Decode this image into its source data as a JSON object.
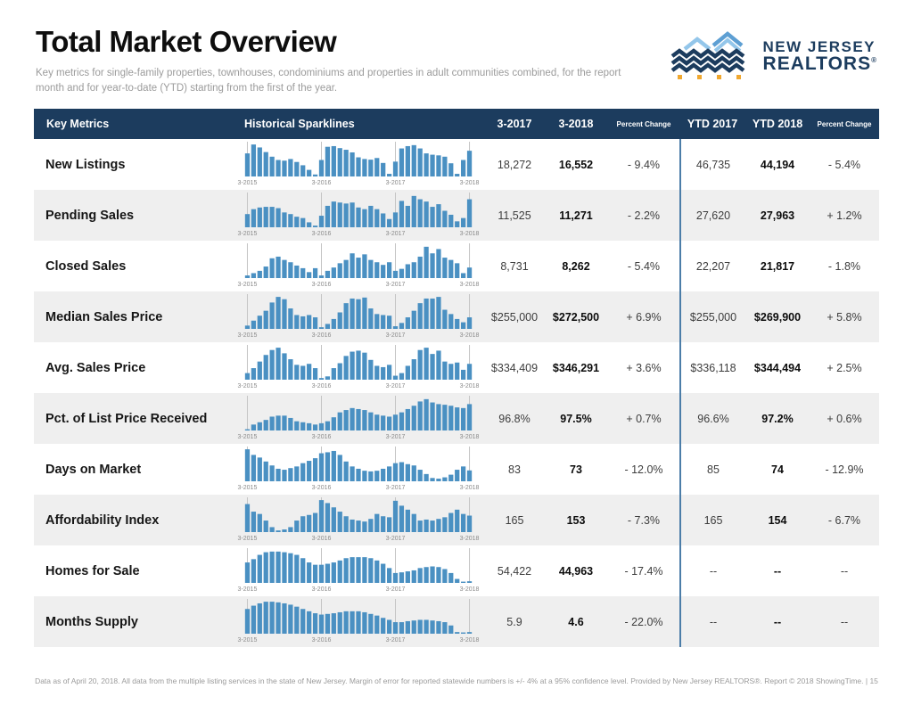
{
  "page": {
    "title": "Total Market Overview",
    "subtitle": "Key metrics for single-family properties, townhouses, condominiums and properties in adult communities combined, for the report month and for year-to-date (YTD) starting from the first of the year.",
    "footer": "Data as of April 20, 2018. All data from the multiple listing services in the state of New Jersey. Margin of error for reported statewide numbers is +/- 4% at a 95% confidence level. Provided by New Jersey REALTORS®. Report © 2018 ShowingTime. | 15"
  },
  "logo": {
    "line1": "NEW JERSEY",
    "line2": "REALTORS",
    "registered": "®"
  },
  "colors": {
    "header_bg": "#1c3c5e",
    "bar_blue": "#4a90c2",
    "divider_blue": "#4b7da8",
    "row_alt": "#efefef",
    "gridline": "#c4c4c4",
    "axis_label": "#8a8a8a",
    "logo_navy": "#1c3c5e",
    "logo_light_blue": "#93c6ea",
    "logo_mid_blue": "#5d9fd3",
    "logo_orange": "#f0a830"
  },
  "table": {
    "headers": {
      "key_metrics": "Key Metrics",
      "sparklines": "Historical Sparklines",
      "m_prev": "3-2017",
      "m_curr": "3-2018",
      "pct": "Percent Change",
      "ytd_prev": "YTD 2017",
      "ytd_curr": "YTD 2018",
      "ytd_pct": "Percent Change"
    },
    "spark_axis_labels": [
      "3-2015",
      "3-2016",
      "3-2017",
      "3-2018"
    ],
    "chart_data": {
      "type": "bar",
      "note": "Each row sparkline: 37 monthly values, March 2015 through March 2018, relative scale 0-100"
    },
    "rows": [
      {
        "metric": "New Listings",
        "m_prev": "18,272",
        "m_curr": "16,552",
        "pct": "- 9.4%",
        "ytd_prev": "46,735",
        "ytd_curr": "44,194",
        "ytd_pct": "- 5.4%",
        "spark": [
          70,
          97,
          88,
          74,
          60,
          50,
          48,
          53,
          44,
          34,
          20,
          6,
          50,
          90,
          92,
          86,
          81,
          73,
          58,
          53,
          51,
          56,
          41,
          8,
          45,
          85,
          92,
          95,
          85,
          70,
          66,
          64,
          60,
          40,
          8,
          50,
          78
        ]
      },
      {
        "metric": "Pending Sales",
        "m_prev": "11,525",
        "m_curr": "11,271",
        "pct": "- 2.2%",
        "ytd_prev": "27,620",
        "ytd_curr": "27,963",
        "ytd_pct": "+ 1.2%",
        "spark": [
          40,
          55,
          60,
          62,
          62,
          58,
          45,
          40,
          32,
          28,
          15,
          5,
          35,
          65,
          78,
          75,
          72,
          75,
          60,
          55,
          65,
          55,
          42,
          25,
          45,
          80,
          65,
          95,
          85,
          78,
          62,
          70,
          50,
          38,
          18,
          28,
          85
        ]
      },
      {
        "metric": "Closed Sales",
        "m_prev": "8,731",
        "m_curr": "8,262",
        "pct": "- 5.4%",
        "ytd_prev": "22,207",
        "ytd_curr": "21,817",
        "ytd_pct": "- 1.8%",
        "spark": [
          8,
          15,
          22,
          35,
          60,
          65,
          55,
          48,
          38,
          30,
          18,
          30,
          8,
          22,
          32,
          45,
          55,
          75,
          62,
          72,
          55,
          48,
          40,
          48,
          22,
          28,
          42,
          48,
          65,
          95,
          75,
          88,
          62,
          55,
          45,
          15,
          32
        ]
      },
      {
        "metric": "Median Sales Price",
        "m_prev": "$255,000",
        "m_curr": "$272,500",
        "pct": "+ 6.9%",
        "ytd_prev": "$255,000",
        "ytd_curr": "$269,900",
        "ytd_pct": "+ 5.8%",
        "spark": [
          10,
          25,
          40,
          55,
          80,
          97,
          90,
          62,
          42,
          38,
          42,
          35,
          5,
          15,
          30,
          50,
          78,
          92,
          90,
          95,
          62,
          45,
          42,
          40,
          8,
          18,
          35,
          55,
          78,
          92,
          92,
          97,
          58,
          45,
          30,
          20,
          35
        ]
      },
      {
        "metric": "Avg. Sales Price",
        "m_prev": "$334,409",
        "m_curr": "$346,291",
        "pct": "+ 3.6%",
        "ytd_prev": "$336,118",
        "ytd_curr": "$344,494",
        "ytd_pct": "+ 2.5%",
        "spark": [
          20,
          35,
          55,
          75,
          90,
          97,
          80,
          62,
          45,
          42,
          48,
          35,
          5,
          10,
          35,
          50,
          72,
          85,
          88,
          82,
          60,
          42,
          38,
          45,
          12,
          20,
          42,
          62,
          90,
          97,
          78,
          88,
          55,
          48,
          52,
          30,
          48
        ]
      },
      {
        "metric": "Pct. of List Price Received",
        "m_prev": "96.8%",
        "m_curr": "97.5%",
        "pct": "+ 0.7%",
        "ytd_prev": "96.6%",
        "ytd_curr": "97.2%",
        "ytd_pct": "+ 0.6%",
        "spark": [
          3,
          18,
          25,
          32,
          42,
          45,
          45,
          38,
          28,
          25,
          22,
          18,
          22,
          28,
          40,
          55,
          62,
          68,
          65,
          62,
          55,
          48,
          45,
          42,
          48,
          55,
          65,
          75,
          88,
          95,
          85,
          80,
          78,
          75,
          70,
          68,
          80
        ]
      },
      {
        "metric": "Days on Market",
        "m_prev": "83",
        "m_curr": "73",
        "pct": "- 12.0%",
        "ytd_prev": "85",
        "ytd_curr": "74",
        "ytd_pct": "- 12.9%",
        "spark": [
          97,
          80,
          72,
          60,
          48,
          38,
          35,
          40,
          45,
          55,
          62,
          70,
          85,
          88,
          92,
          80,
          60,
          45,
          38,
          32,
          30,
          32,
          38,
          45,
          55,
          58,
          52,
          48,
          35,
          22,
          10,
          8,
          12,
          20,
          35,
          45,
          33
        ]
      },
      {
        "metric": "Affordability Index",
        "m_prev": "165",
        "m_curr": "153",
        "pct": "- 7.3%",
        "ytd_prev": "165",
        "ytd_curr": "154",
        "ytd_pct": "- 6.7%",
        "spark": [
          85,
          62,
          55,
          35,
          15,
          5,
          8,
          15,
          35,
          48,
          52,
          58,
          97,
          88,
          75,
          62,
          48,
          38,
          35,
          32,
          40,
          55,
          48,
          45,
          95,
          80,
          68,
          55,
          35,
          38,
          35,
          40,
          45,
          58,
          68,
          55,
          50
        ]
      },
      {
        "metric": "Homes for Sale",
        "m_prev": "54,422",
        "m_curr": "44,963",
        "pct": "- 17.4%",
        "ytd_prev": "--",
        "ytd_curr": "--",
        "ytd_pct": "--",
        "spark": [
          62,
          72,
          85,
          93,
          95,
          95,
          93,
          90,
          85,
          75,
          62,
          55,
          55,
          58,
          62,
          68,
          75,
          78,
          78,
          78,
          75,
          68,
          58,
          45,
          30,
          32,
          35,
          38,
          45,
          48,
          50,
          48,
          42,
          30,
          12,
          3,
          5
        ]
      },
      {
        "metric": "Months Supply",
        "m_prev": "5.9",
        "m_curr": "4.6",
        "pct": "- 22.0%",
        "ytd_prev": "--",
        "ytd_curr": "--",
        "ytd_pct": "--",
        "spark": [
          75,
          85,
          92,
          97,
          97,
          95,
          92,
          88,
          82,
          75,
          68,
          62,
          58,
          60,
          62,
          65,
          68,
          68,
          68,
          65,
          60,
          55,
          48,
          42,
          35,
          35,
          38,
          40,
          42,
          42,
          40,
          38,
          35,
          25,
          5,
          3,
          5
        ]
      }
    ]
  }
}
